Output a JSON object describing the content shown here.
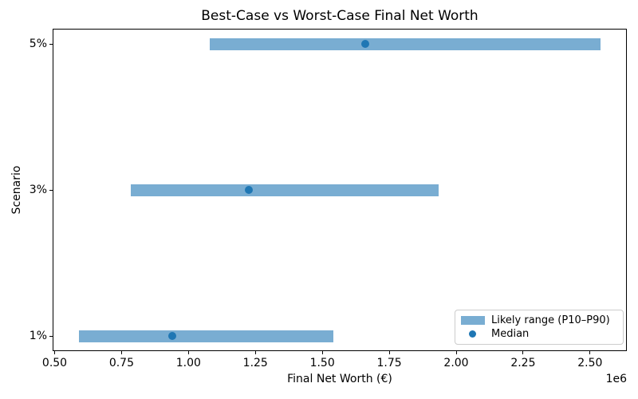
{
  "chart_data": {
    "type": "bar",
    "subtype": "horizontal-range-bars-with-median-points",
    "title": "Best-Case vs Worst-Case Final Net Worth",
    "xlabel": "Final Net Worth (€)",
    "ylabel": "Scenario",
    "x_offset_label": "1e6",
    "xlim": [
      492500,
      2637500
    ],
    "grid": false,
    "x_ticks": [
      {
        "value": 500000,
        "label": "0.50"
      },
      {
        "value": 750000,
        "label": "0.75"
      },
      {
        "value": 1000000,
        "label": "1.00"
      },
      {
        "value": 1250000,
        "label": "1.25"
      },
      {
        "value": 1500000,
        "label": "1.50"
      },
      {
        "value": 1750000,
        "label": "1.75"
      },
      {
        "value": 2000000,
        "label": "2.00"
      },
      {
        "value": 2250000,
        "label": "2.25"
      },
      {
        "value": 2500000,
        "label": "2.50"
      }
    ],
    "categories_top_to_bottom": [
      "5%",
      "3%",
      "1%"
    ],
    "rows": [
      {
        "scenario": "5%",
        "p10": 1080000,
        "median": 1660000,
        "p90": 2540000
      },
      {
        "scenario": "3%",
        "p10": 785000,
        "median": 1225000,
        "p90": 1935000
      },
      {
        "scenario": "1%",
        "p10": 590000,
        "median": 940000,
        "p90": 1540000
      }
    ],
    "series": [
      {
        "name": "Likely range (P10–P90)",
        "type": "range",
        "values": [
          [
            1080000,
            2540000
          ],
          [
            785000,
            1935000
          ],
          [
            590000,
            1540000
          ]
        ]
      },
      {
        "name": "Median",
        "type": "point",
        "values": [
          1660000,
          1225000,
          940000
        ]
      }
    ],
    "legend": {
      "position": "lower right",
      "items": [
        {
          "label": "Likely range (P10–P90)",
          "marker": "patch"
        },
        {
          "label": "Median",
          "marker": "dot"
        }
      ]
    },
    "colors": {
      "range_bar": "#79add2",
      "median_dot": "#1f77b4",
      "spine": "#000000",
      "text": "#000000",
      "legend_border": "#cccccc"
    }
  }
}
